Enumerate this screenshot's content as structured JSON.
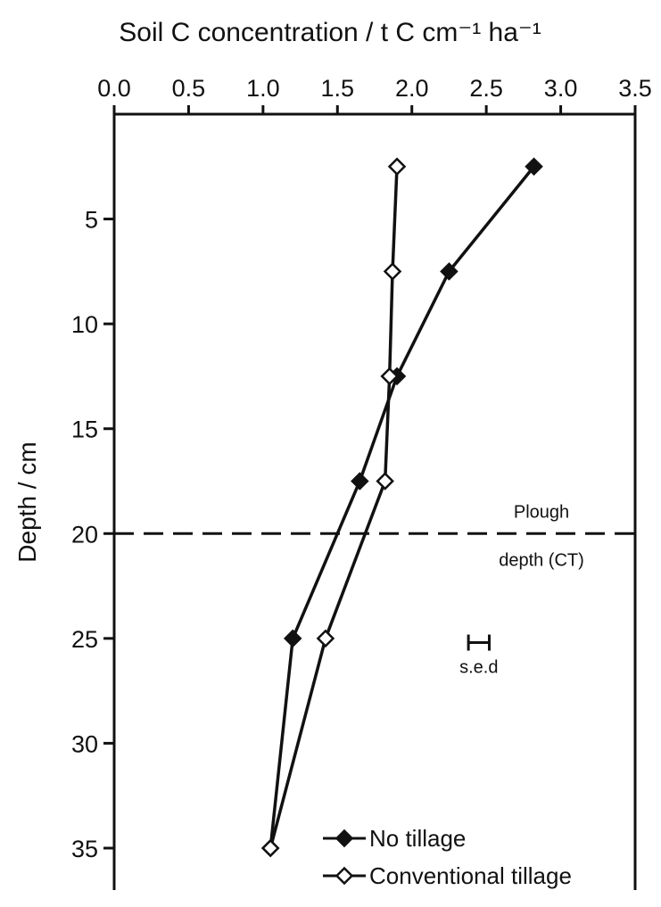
{
  "chart_data": {
    "type": "line",
    "title": "Soil C concentration / t C cm⁻¹ ha⁻¹",
    "ylabel": "Depth / cm",
    "xlabel": "",
    "x_axis_position": "top",
    "y_axis_inverted": true,
    "xlim": [
      0,
      3.5
    ],
    "ylim": [
      0,
      37
    ],
    "x_ticks": [
      "0.0",
      "0.5",
      "1.0",
      "1.5",
      "2.0",
      "2.5",
      "3.0",
      "3.5"
    ],
    "y_ticks": [
      "5",
      "10",
      "15",
      "20",
      "25",
      "30",
      "35"
    ],
    "grid": false,
    "legend_position": "bottom-right",
    "series": [
      {
        "name": "No tillage",
        "marker": "filled-diamond",
        "color": "#111111",
        "points": [
          {
            "x": 2.82,
            "y": 2.5
          },
          {
            "x": 2.25,
            "y": 7.5
          },
          {
            "x": 1.9,
            "y": 12.5
          },
          {
            "x": 1.65,
            "y": 17.5
          },
          {
            "x": 1.2,
            "y": 25
          },
          {
            "x": 1.05,
            "y": 35
          }
        ]
      },
      {
        "name": "Conventional tillage",
        "marker": "open-diamond",
        "color": "#111111",
        "points": [
          {
            "x": 1.9,
            "y": 2.5
          },
          {
            "x": 1.87,
            "y": 7.5
          },
          {
            "x": 1.85,
            "y": 12.5
          },
          {
            "x": 1.82,
            "y": 17.5
          },
          {
            "x": 1.42,
            "y": 25
          },
          {
            "x": 1.05,
            "y": 35
          }
        ]
      }
    ],
    "annotations": {
      "plough_depth": {
        "y": 20,
        "label_top": "Plough",
        "label_bottom": "depth (CT)"
      },
      "sed": {
        "label": "s.e.d",
        "center_x": 2.45,
        "y": 25.2,
        "half_width": 0.07
      }
    }
  }
}
